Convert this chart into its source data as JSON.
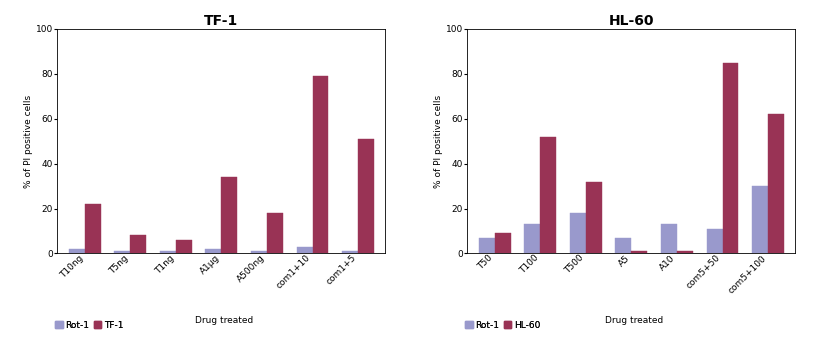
{
  "tf1": {
    "title": "TF-1",
    "categories": [
      "T10ng",
      "T5ng",
      "T1ng",
      "A1μg",
      "A500ng",
      "com1+10",
      "com1+5"
    ],
    "control_values": [
      2,
      1,
      1,
      2,
      1,
      3,
      1
    ],
    "treated_values": [
      22,
      8,
      6,
      34,
      18,
      79,
      51
    ],
    "ylabel": "% of PI positive cells",
    "legend_control": "Rot-1",
    "legend_treated": "TF-1",
    "legend_text": "Drug treated",
    "ylim": [
      0,
      100
    ],
    "yticks": [
      0,
      20,
      40,
      60,
      80,
      100
    ]
  },
  "hl60": {
    "title": "HL-60",
    "categories": [
      "T50",
      "T100",
      "T500",
      "A5",
      "A10",
      "com5+50",
      "com5+100"
    ],
    "control_values": [
      7,
      13,
      18,
      7,
      13,
      11,
      30
    ],
    "treated_values": [
      9,
      52,
      32,
      1,
      1,
      85,
      62
    ],
    "ylabel": "% of PI positive cells",
    "legend_control": "Rot-1",
    "legend_treated": "HL-60",
    "legend_text": "Drug treated",
    "ylim": [
      0,
      100
    ],
    "yticks": [
      0,
      20,
      40,
      60,
      80,
      100
    ]
  },
  "color_control": "#9999cc",
  "color_treated": "#993355",
  "bar_width": 0.35,
  "title_fontsize": 10,
  "label_fontsize": 6.5,
  "tick_fontsize": 6.5,
  "legend_fontsize": 6.5,
  "fig_width": 8.2,
  "fig_height": 3.62
}
